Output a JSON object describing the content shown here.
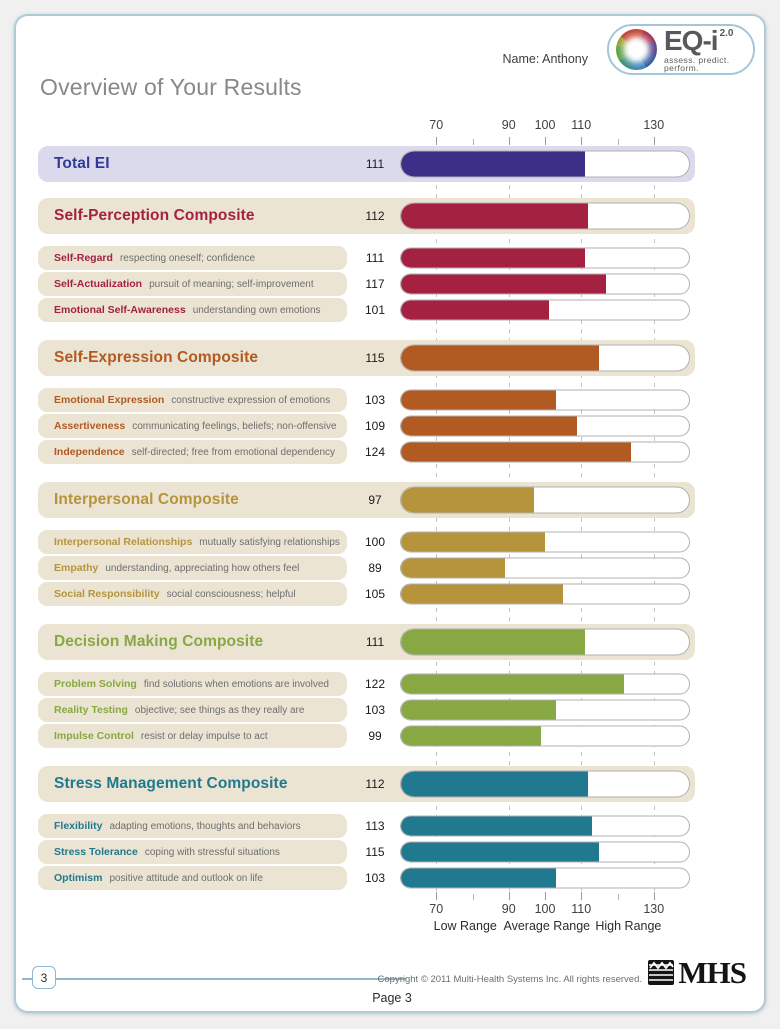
{
  "page": {
    "name_label": "Name: Anthony",
    "title": "Overview of Your Results",
    "page_number": "3",
    "page_footer": "Page 3",
    "copyright": "Copyright © 2011 Multi-Health Systems Inc. All rights reserved."
  },
  "logo": {
    "brand": "EQ-i",
    "version": "2.0",
    "tagline": "assess. predict. perform.",
    "mhs": "MHS"
  },
  "colors": {
    "band_total": "#dbd9ec",
    "band_beige": "#ebe4d2",
    "track_border": "#b0b0b0",
    "gridline": "#c3c3c3",
    "description_text": "#6d6e71",
    "axis_text": "#414042"
  },
  "chart_data": {
    "type": "bar",
    "orientation": "horizontal",
    "title": "Overview of Your Results",
    "axis": {
      "min": 60,
      "max": 140,
      "labeled_ticks": [
        70,
        90,
        100,
        110,
        130
      ],
      "minor_ticks": [
        80,
        120
      ],
      "gridlines": [
        70,
        90,
        110,
        130
      ],
      "range_labels": [
        "Low Range",
        "Average Range",
        "High Range"
      ],
      "range_label_centers": [
        78,
        100.5,
        123
      ]
    },
    "groups": [
      {
        "type": "total",
        "label": "Total EI",
        "value": 111,
        "color": "#3d2e87",
        "label_color": "#2f3b94",
        "items": []
      },
      {
        "type": "composite",
        "label": "Self-Perception Composite",
        "value": 112,
        "color": "#a42142",
        "items": [
          {
            "label": "Self-Regard",
            "description": "respecting oneself; confidence",
            "value": 111
          },
          {
            "label": "Self-Actualization",
            "description": "pursuit of meaning; self-improvement",
            "value": 117
          },
          {
            "label": "Emotional Self-Awareness",
            "description": "understanding own emotions",
            "value": 101
          }
        ]
      },
      {
        "type": "composite",
        "label": "Self-Expression Composite",
        "value": 115,
        "color": "#b15a21",
        "items": [
          {
            "label": "Emotional Expression",
            "description": "constructive expression of emotions",
            "value": 103
          },
          {
            "label": "Assertiveness",
            "description": "communicating feelings, beliefs; non-offensive",
            "value": 109
          },
          {
            "label": "Independence",
            "description": "self-directed; free from emotional dependency",
            "value": 124
          }
        ]
      },
      {
        "type": "composite",
        "label": "Interpersonal Composite",
        "value": 97,
        "color": "#b6943c",
        "items": [
          {
            "label": "Interpersonal Relationships",
            "description": "mutually satisfying relationships",
            "value": 100
          },
          {
            "label": "Empathy",
            "description": "understanding, appreciating how others feel",
            "value": 89
          },
          {
            "label": "Social Responsibility",
            "description": "social consciousness; helpful",
            "value": 105
          }
        ]
      },
      {
        "type": "composite",
        "label": "Decision Making Composite",
        "value": 111,
        "color": "#87a842",
        "items": [
          {
            "label": "Problem Solving",
            "description": "find solutions when emotions are involved",
            "value": 122
          },
          {
            "label": "Reality Testing",
            "description": "objective; see things as they really are",
            "value": 103
          },
          {
            "label": "Impulse Control",
            "description": "resist or delay impulse to act",
            "value": 99
          }
        ]
      },
      {
        "type": "composite",
        "label": "Stress Management Composite",
        "value": 112,
        "color": "#20798f",
        "items": [
          {
            "label": "Flexibility",
            "description": "adapting emotions, thoughts and behaviors",
            "value": 113
          },
          {
            "label": "Stress Tolerance",
            "description": "coping with stressful situations",
            "value": 115
          },
          {
            "label": "Optimism",
            "description": "positive attitude and outlook on life",
            "value": 103
          }
        ]
      }
    ]
  }
}
